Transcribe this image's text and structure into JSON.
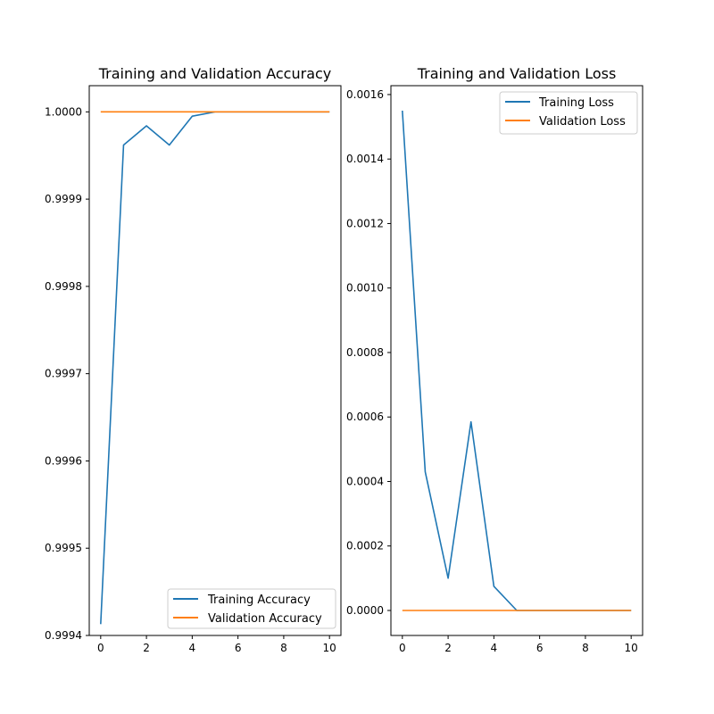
{
  "chart_data": [
    {
      "type": "line",
      "title": "Training and Validation Accuracy",
      "xlabel": "",
      "ylabel": "",
      "xlim": [
        -0.5,
        10.5
      ],
      "ylim": [
        0.9994,
        1.00003
      ],
      "x_ticks": [
        0,
        2,
        4,
        6,
        8,
        10
      ],
      "x_tick_labels": [
        "0",
        "2",
        "4",
        "6",
        "8",
        "10"
      ],
      "y_ticks": [
        0.9994,
        0.9995,
        0.9996,
        0.9997,
        0.9998,
        0.9999,
        1.0
      ],
      "y_tick_labels": [
        "0.9994",
        "0.9995",
        "0.9996",
        "0.9997",
        "0.9998",
        "0.9999",
        "1.0000"
      ],
      "grid": false,
      "legend": "lower-right",
      "series": [
        {
          "name": "Training Accuracy",
          "color": "#1f77b4",
          "x": [
            0,
            1,
            2,
            3,
            4,
            5,
            6,
            7,
            8,
            9,
            10
          ],
          "y": [
            0.999413,
            0.999962,
            0.999984,
            0.999962,
            0.999995,
            1.0,
            1.0,
            1.0,
            1.0,
            1.0,
            1.0
          ]
        },
        {
          "name": "Validation Accuracy",
          "color": "#ff7f0e",
          "x": [
            0,
            1,
            2,
            3,
            4,
            5,
            6,
            7,
            8,
            9,
            10
          ],
          "y": [
            1.0,
            1.0,
            1.0,
            1.0,
            1.0,
            1.0,
            1.0,
            1.0,
            1.0,
            1.0,
            1.0
          ]
        }
      ]
    },
    {
      "type": "line",
      "title": "Training and Validation Loss",
      "xlabel": "",
      "ylabel": "",
      "xlim": [
        -0.5,
        10.5
      ],
      "ylim": [
        -7.75e-05,
        0.0016275
      ],
      "x_ticks": [
        0,
        2,
        4,
        6,
        8,
        10
      ],
      "x_tick_labels": [
        "0",
        "2",
        "4",
        "6",
        "8",
        "10"
      ],
      "y_ticks": [
        0.0,
        0.0002,
        0.0004,
        0.0006,
        0.0008,
        0.001,
        0.0012,
        0.0014,
        0.0016
      ],
      "y_tick_labels": [
        "0.0000",
        "0.0002",
        "0.0004",
        "0.0006",
        "0.0008",
        "0.0010",
        "0.0012",
        "0.0014",
        "0.0016"
      ],
      "grid": false,
      "legend": "upper-right",
      "series": [
        {
          "name": "Training Loss",
          "color": "#1f77b4",
          "x": [
            0,
            1,
            2,
            3,
            4,
            5,
            6,
            7,
            8,
            9,
            10
          ],
          "y": [
            0.00155,
            0.00043,
            0.0001,
            0.000585,
            7.5e-05,
            0.0,
            0.0,
            0.0,
            0.0,
            0.0,
            0.0
          ]
        },
        {
          "name": "Validation Loss",
          "color": "#ff7f0e",
          "x": [
            0,
            1,
            2,
            3,
            4,
            5,
            6,
            7,
            8,
            9,
            10
          ],
          "y": [
            0.0,
            0.0,
            0.0,
            0.0,
            0.0,
            0.0,
            0.0,
            0.0,
            0.0,
            0.0,
            0.0
          ]
        }
      ]
    }
  ]
}
